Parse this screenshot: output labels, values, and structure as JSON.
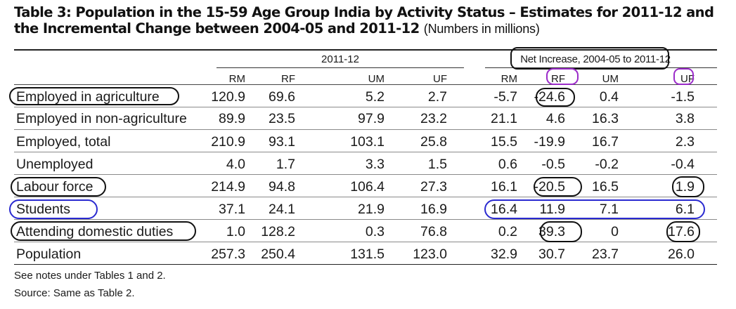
{
  "title": {
    "main": "Table 3: Population in the 15-59 Age Group India by Activity Status – Estimates for 2011-12 and the Incremental Change between 2004-05 and 2011-12",
    "unit": "(Numbers in millions)"
  },
  "groups": {
    "current": "2011-12",
    "change": "Net Increase, 2004-05 to 2011-12"
  },
  "columns": [
    "RM",
    "RF",
    "UM",
    "UF",
    "RM",
    "RF",
    "UM",
    "UF"
  ],
  "rows": [
    {
      "label": "Employed in agriculture",
      "values": [
        "120.9",
        "69.6",
        "5.2",
        "2.7",
        "-5.7",
        "-24.6",
        "0.4",
        "-1.5"
      ]
    },
    {
      "label": "Employed in non-agriculture",
      "values": [
        "89.9",
        "23.5",
        "97.9",
        "23.2",
        "21.1",
        "4.6",
        "16.3",
        "3.8"
      ]
    },
    {
      "label": "Employed, total",
      "values": [
        "210.9",
        "93.1",
        "103.1",
        "25.8",
        "15.5",
        "-19.9",
        "16.7",
        "2.3"
      ]
    },
    {
      "label": "Unemployed",
      "values": [
        "4.0",
        "1.7",
        "3.3",
        "1.5",
        "0.6",
        "-0.5",
        "-0.2",
        "-0.4"
      ]
    },
    {
      "label": "Labour force",
      "values": [
        "214.9",
        "94.8",
        "106.4",
        "27.3",
        "16.1",
        "-20.5",
        "16.5",
        "1.9"
      ]
    },
    {
      "label": "Students",
      "values": [
        "37.1",
        "24.1",
        "21.9",
        "16.9",
        "16.4",
        "11.9",
        "7.1",
        "6.1"
      ]
    },
    {
      "label": "Attending domestic duties",
      "values": [
        "1.0",
        "128.2",
        "0.3",
        "76.8",
        "0.2",
        "39.3",
        "0",
        "17.6"
      ]
    },
    {
      "label": "Population",
      "values": [
        "257.3",
        "250.4",
        "131.5",
        "123.0",
        "32.9",
        "30.7",
        "23.7",
        "26.0"
      ]
    }
  ],
  "notes": [
    "See notes under Tables 1 and 2.",
    "Source: Same as Table 2."
  ],
  "colors": {
    "annotation_black": "#111111",
    "annotation_purple": "#9b2cc9",
    "annotation_blue": "#2a2ad0"
  }
}
